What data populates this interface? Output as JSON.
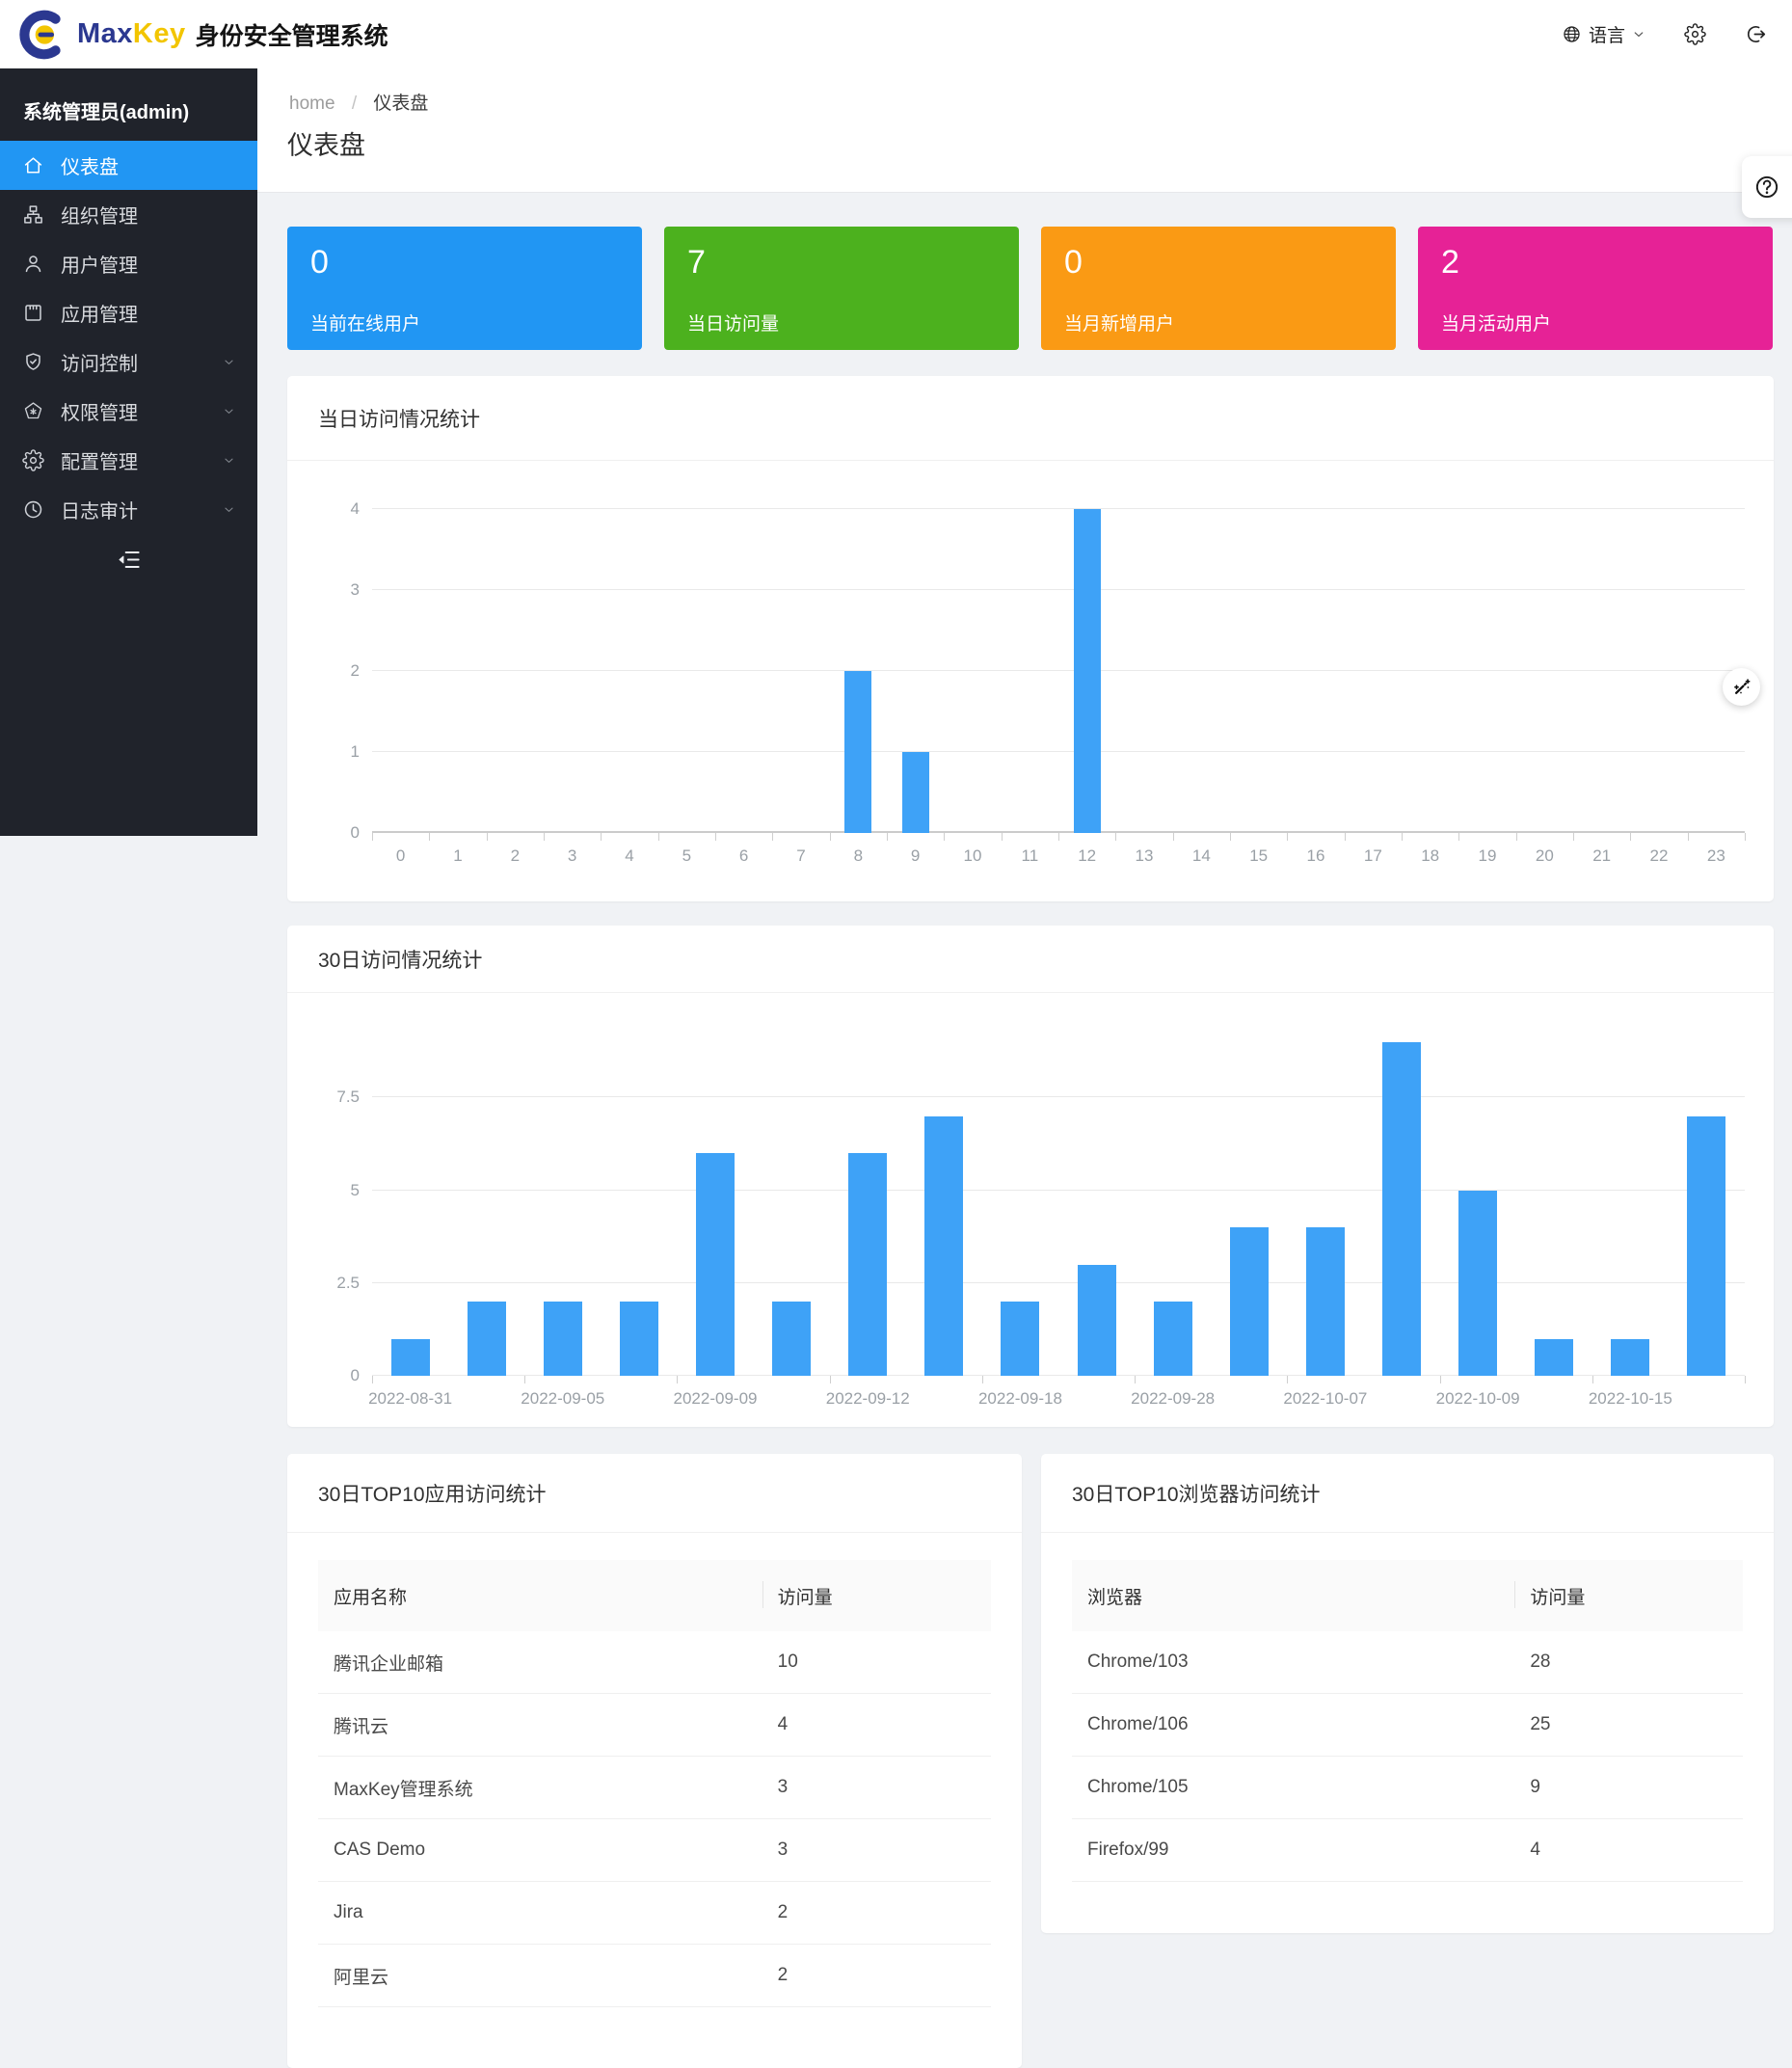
{
  "header": {
    "brand": {
      "max": "Max",
      "key": "Key",
      "product": "身份安全管理系统"
    },
    "language_label": "语言",
    "icons": {
      "globe": "globe-icon",
      "chevron": "chevron-down-icon",
      "gear": "gear-icon",
      "logout": "logout-icon"
    }
  },
  "sidebar": {
    "user_title": "系统管理员(admin)",
    "collapse_icon": "menu-fold-icon",
    "items": [
      {
        "key": "dashboard",
        "label": "仪表盘",
        "icon": "home-icon",
        "active": true,
        "expandable": false
      },
      {
        "key": "organization",
        "label": "组织管理",
        "icon": "org-icon",
        "active": false,
        "expandable": false
      },
      {
        "key": "users",
        "label": "用户管理",
        "icon": "user-icon",
        "active": false,
        "expandable": false
      },
      {
        "key": "applications",
        "label": "应用管理",
        "icon": "app-icon",
        "active": false,
        "expandable": false
      },
      {
        "key": "access-control",
        "label": "访问控制",
        "icon": "shield-check-icon",
        "active": false,
        "expandable": true
      },
      {
        "key": "permissions",
        "label": "权限管理",
        "icon": "pentagon-star-icon",
        "active": false,
        "expandable": true
      },
      {
        "key": "configuration",
        "label": "配置管理",
        "icon": "gear-icon",
        "active": false,
        "expandable": true
      },
      {
        "key": "audit-log",
        "label": "日志审计",
        "icon": "clock-icon",
        "active": false,
        "expandable": true
      }
    ]
  },
  "breadcrumb": {
    "home": "home",
    "separator": "/",
    "current": "仪表盘"
  },
  "page": {
    "title": "仪表盘"
  },
  "stats": [
    {
      "key": "online-users",
      "value": "0",
      "label": "当前在线用户",
      "color": "#2196f3"
    },
    {
      "key": "daily-visits",
      "value": "7",
      "label": "当日访问量",
      "color": "#4cb11e"
    },
    {
      "key": "monthly-new-users",
      "value": "0",
      "label": "当月新增用户",
      "color": "#fa9a14"
    },
    {
      "key": "monthly-active-users",
      "value": "2",
      "label": "当月活动用户",
      "color": "#e62296"
    }
  ],
  "chart_data": [
    {
      "type": "bar",
      "title": "当日访问情况统计",
      "xlabel": "",
      "ylabel": "",
      "categories": [
        "0",
        "1",
        "2",
        "3",
        "4",
        "5",
        "6",
        "7",
        "8",
        "9",
        "10",
        "11",
        "12",
        "13",
        "14",
        "15",
        "16",
        "17",
        "18",
        "19",
        "20",
        "21",
        "22",
        "23"
      ],
      "values": [
        0,
        0,
        0,
        0,
        0,
        0,
        0,
        0,
        2,
        1,
        0,
        0,
        4,
        0,
        0,
        0,
        0,
        0,
        0,
        0,
        0,
        0,
        0,
        0
      ],
      "ylim": [
        0,
        4
      ],
      "yticks": [
        0,
        1,
        2,
        3,
        4
      ],
      "bar_color": "#3ea2f7",
      "grid": true,
      "legend": false
    },
    {
      "type": "bar",
      "title": "30日访问情况统计",
      "xlabel": "",
      "ylabel": "",
      "categories": [
        "2022-08-31",
        "",
        "2022-09-05",
        "",
        "2022-09-09",
        "",
        "2022-09-12",
        "",
        "2022-09-18",
        "",
        "2022-09-28",
        "",
        "2022-10-07",
        "",
        "2022-10-09",
        "",
        "2022-10-15",
        ""
      ],
      "values": [
        1,
        2,
        2,
        2,
        6,
        2,
        6,
        7,
        2,
        3,
        2,
        4,
        4,
        9,
        5,
        1,
        1,
        7
      ],
      "ylim": [
        0,
        9
      ],
      "yticks": [
        0,
        2.5,
        5,
        7.5
      ],
      "bar_color": "#3ea2f7",
      "grid": true,
      "legend": false
    }
  ],
  "tables": [
    {
      "title": "30日TOP10应用访问统计",
      "columns": [
        "应用名称",
        "访问量"
      ],
      "rows": [
        [
          "腾讯企业邮箱",
          "10"
        ],
        [
          "腾讯云",
          "4"
        ],
        [
          "MaxKey管理系统",
          "3"
        ],
        [
          "CAS Demo",
          "3"
        ],
        [
          "Jira",
          "2"
        ],
        [
          "阿里云",
          "2"
        ]
      ]
    },
    {
      "title": "30日TOP10浏览器访问统计",
      "columns": [
        "浏览器",
        "访问量"
      ],
      "rows": [
        [
          "Chrome/103",
          "28"
        ],
        [
          "Chrome/106",
          "25"
        ],
        [
          "Chrome/105",
          "9"
        ],
        [
          "Firefox/99",
          "4"
        ]
      ]
    }
  ],
  "floating": {
    "help_icon": "question-icon",
    "wand_icon": "magic-wand-icon"
  }
}
